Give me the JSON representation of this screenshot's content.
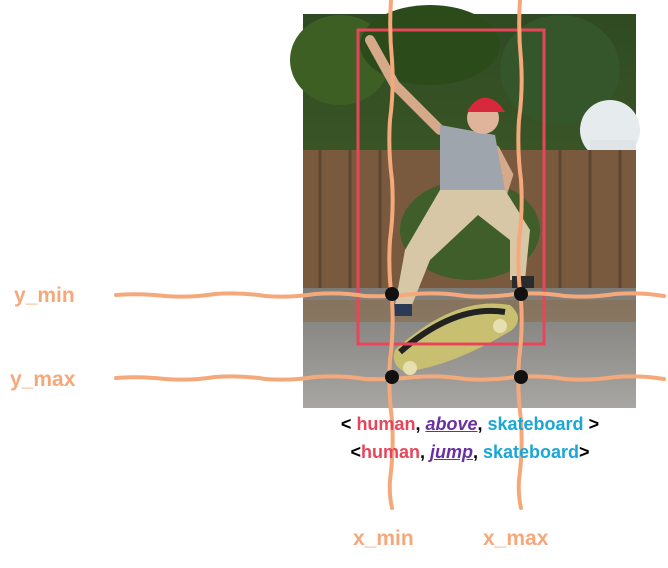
{
  "labels": {
    "y_min": "y_min",
    "y_max": "y_max",
    "x_min": "x_min",
    "x_max": "x_max"
  },
  "triplets": [
    {
      "open": "< ",
      "subject": "human",
      "sep1": ", ",
      "predicate": "above",
      "sep2": ", ",
      "object": "skateboard",
      "close": " >"
    },
    {
      "open": "<",
      "subject": "human",
      "sep1": ", ",
      "predicate": "jump",
      "sep2": ", ",
      "object": "skateboard",
      "close": ">"
    }
  ],
  "colors": {
    "guide": "#f5a97a",
    "box": "#e8455b",
    "subject": "#e8455b",
    "predicate": "#6a2fa0",
    "object": "#1aa7d6"
  },
  "photo": {
    "icon": "skateboarder-photo"
  }
}
